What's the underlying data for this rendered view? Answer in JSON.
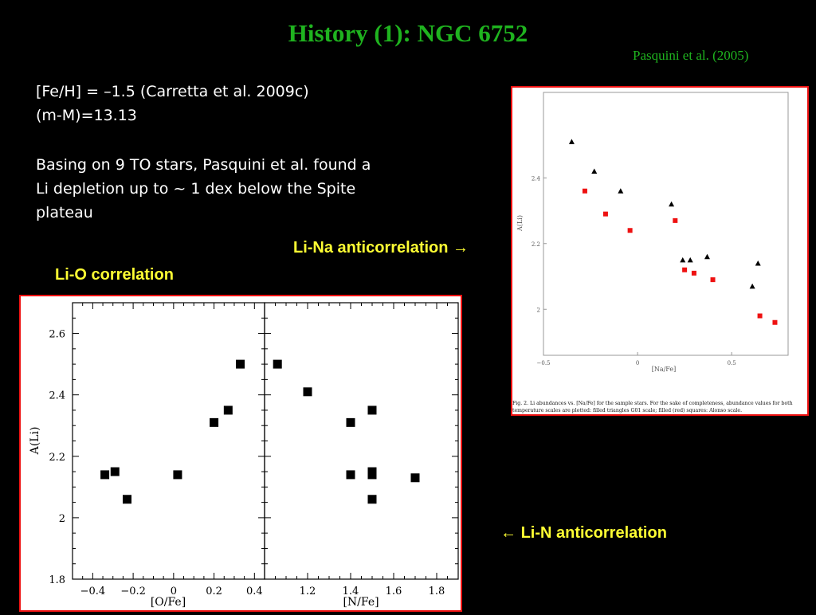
{
  "slide": {
    "title": "History (1): NGC 6752",
    "reference": "Pasquini et al. (2005)",
    "line1": "[Fe/H] = –1.5 (Carretta et al. 2009c)",
    "line2": "(m-M)=13.13",
    "para_line1": "Basing on 9 TO stars, Pasquini et al. found a",
    "para_line2": "Li depletion up to ~ 1 dex below the Spite",
    "para_line3": "plateau",
    "callout_na": "Li-Na anticorrelation",
    "callout_o": "Li-O correlation",
    "callout_n": "Li-N anticorrelation",
    "arrow_right": "→",
    "arrow_left": "←",
    "caption_line1": "Fig. 2.  Li abundances vs. [Na/Fe] for the sample stars. For the sake of completeness, abundance values for both",
    "caption_line2": "temperature scales are plotted: filled triangles G01 scale; filled (red) squares: Alonso scale.",
    "colors": {
      "title": "#1fb31f",
      "callout": "#ffff33",
      "border": "#e11111",
      "marker_red": "#ee1111"
    }
  },
  "chart_data": [
    {
      "type": "scatter",
      "xlabel": "[Na/Fe]",
      "ylabel": "A(Li)",
      "xlim": [
        -0.5,
        0.8
      ],
      "ylim": [
        1.86,
        2.66
      ],
      "xticks": [
        "−0.5",
        "0",
        "0.5"
      ],
      "yticks": [
        "2",
        "2.2",
        "2.4"
      ],
      "series": [
        {
          "marker": "triangle",
          "color": "#000000",
          "x": [
            -0.35,
            -0.23,
            -0.09,
            0.18,
            0.24,
            0.28,
            0.37,
            0.61,
            0.64
          ],
          "y": [
            2.51,
            2.42,
            2.36,
            2.32,
            2.15,
            2.15,
            2.16,
            2.07,
            2.14
          ]
        },
        {
          "marker": "square",
          "color": "#ee1111",
          "x": [
            -0.28,
            -0.17,
            -0.04,
            0.2,
            0.25,
            0.3,
            0.4,
            0.65,
            0.73
          ],
          "y": [
            2.36,
            2.29,
            2.24,
            2.27,
            2.12,
            2.11,
            2.09,
            1.98,
            1.96
          ]
        }
      ]
    },
    {
      "type": "scatter",
      "xlabel": "[O/Fe]",
      "ylabel": "A(Li)",
      "xlim": [
        -0.5,
        0.45
      ],
      "ylim": [
        1.8,
        2.7
      ],
      "xticks": [
        "−0.4",
        "−0.2",
        "0",
        "0.2",
        "0.4"
      ],
      "yticks": [
        "1.8",
        "2",
        "2.2",
        "2.4",
        "2.6"
      ],
      "x": [
        -0.34,
        -0.29,
        -0.23,
        0.02,
        0.2,
        0.27,
        0.33
      ],
      "y": [
        2.14,
        2.15,
        2.06,
        2.14,
        2.31,
        2.35,
        2.5
      ]
    },
    {
      "type": "scatter",
      "xlabel": "[N/Fe]",
      "xlim": [
        1.0,
        1.9
      ],
      "ylim": [
        1.8,
        2.7
      ],
      "xticks": [
        "1.2",
        "1.4",
        "1.6",
        "1.8"
      ],
      "x": [
        1.06,
        1.2,
        1.4,
        1.4,
        1.5,
        1.5,
        1.5,
        1.5,
        1.7
      ],
      "y": [
        2.5,
        2.41,
        2.31,
        2.14,
        2.35,
        2.15,
        2.14,
        2.06,
        2.13
      ]
    }
  ]
}
